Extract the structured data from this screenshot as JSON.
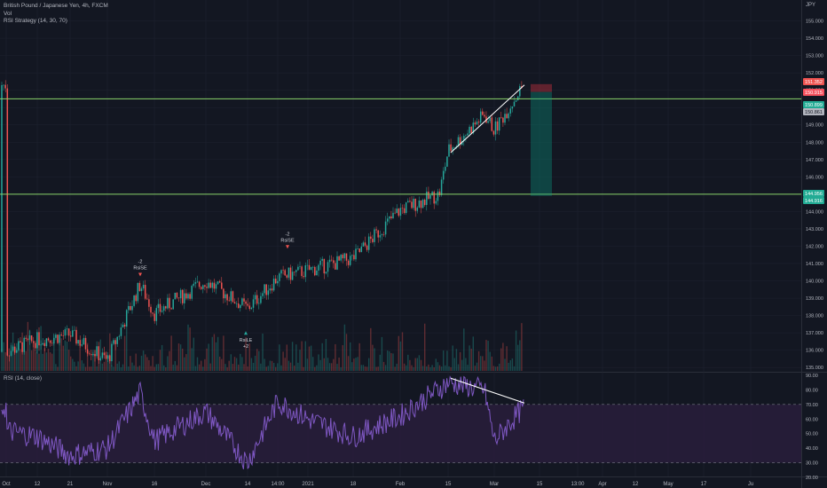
{
  "symbol_title": "British Pound / Japanese Yen, 4h, FXCM",
  "vol_label": "Vol",
  "strategy_label": "RSI Strategy (14, 30, 70)",
  "rsi_label": "RSI (14, close)",
  "currency": "JPY",
  "chart_data": [
    {
      "type": "candlestick",
      "title": "British Pound / Japanese Yen, 4h, FXCM",
      "ylim": [
        134.6,
        156.0
      ],
      "y_ticks": [
        "155.000",
        "154.000",
        "153.000",
        "152.000",
        "151.000",
        "150.000",
        "149.000",
        "148.000",
        "147.000",
        "146.000",
        "145.000",
        "144.000",
        "143.000",
        "142.000",
        "141.000",
        "140.000",
        "139.000",
        "138.000",
        "137.000",
        "136.000",
        "135.000"
      ],
      "x_ticks": [
        "Oct",
        "12",
        "21",
        "Nov",
        "16",
        "Dec",
        "14",
        "14:00",
        "2021",
        "18",
        "Feb",
        "15",
        "Mar",
        "15",
        "13:00",
        "Apr",
        "12",
        "May",
        "17",
        "Ju"
      ],
      "price_anchors": [
        {
          "t": "Oct",
          "p": 135.9
        },
        {
          "t": "12",
          "p": 136.6
        },
        {
          "t": "21",
          "p": 136.9
        },
        {
          "t": "Nov",
          "p": 135.4
        },
        {
          "t": "Nov+6d",
          "p": 139.8
        },
        {
          "t": "16",
          "p": 138.1
        },
        {
          "t": "Dec",
          "p": 140.0
        },
        {
          "t": "14",
          "p": 138.4
        },
        {
          "t": "14:00",
          "p": 140.2
        },
        {
          "t": "2021",
          "p": 140.6
        },
        {
          "t": "18",
          "p": 141.3
        },
        {
          "t": "Feb",
          "p": 144.1
        },
        {
          "t": "Feb+10d",
          "p": 145.0
        },
        {
          "t": "15",
          "p": 147.5
        },
        {
          "t": "Feb+24d",
          "p": 149.6
        },
        {
          "t": "Mar",
          "p": 148.7
        },
        {
          "t": "Mar+7d",
          "p": 151.3
        }
      ],
      "horizontal_lines": [
        150.5,
        145.0
      ],
      "trend_line": {
        "from_price": 147.4,
        "to_price": 151.3
      },
      "position_box": {
        "stop_top": 151.35,
        "entry": 150.9,
        "target": 144.9
      },
      "price_labels": [
        "151.352",
        "150.915",
        "150.899",
        "150.861",
        "144.956",
        "144.916"
      ],
      "signals": [
        {
          "text": "-2",
          "sub": "RsiSE",
          "price": 140.0
        },
        {
          "text": "-2",
          "sub": "RsiSE",
          "price": 141.6
        },
        {
          "text": "RsiLE",
          "sub": "+2",
          "price": 137.2
        }
      ]
    },
    {
      "type": "line",
      "title": "RSI (14, close)",
      "ylim": [
        20,
        90
      ],
      "y_ticks": [
        "90.00",
        "80.00",
        "70.00",
        "60.00",
        "50.00",
        "40.00",
        "30.00",
        "20.00"
      ],
      "upper_band": 70,
      "lower_band": 30,
      "rsi_anchors": [
        {
          "t": "Oct",
          "v": 52
        },
        {
          "t": "12",
          "v": 48
        },
        {
          "t": "21",
          "v": 35
        },
        {
          "t": "Nov",
          "v": 40
        },
        {
          "t": "Nov+6d",
          "v": 78
        },
        {
          "t": "16",
          "v": 45
        },
        {
          "t": "Dec",
          "v": 65
        },
        {
          "t": "14",
          "v": 30
        },
        {
          "t": "14:00",
          "v": 72
        },
        {
          "t": "2021",
          "v": 60
        },
        {
          "t": "18",
          "v": 48
        },
        {
          "t": "Feb",
          "v": 62
        },
        {
          "t": "15",
          "v": 85
        },
        {
          "t": "Feb+24d",
          "v": 80
        },
        {
          "t": "Mar",
          "v": 45
        },
        {
          "t": "Mar+7d",
          "v": 68
        }
      ]
    }
  ],
  "colors": {
    "bg": "#131722",
    "up": "#26a69a",
    "down": "#ef5350",
    "grid": "#1f2330",
    "level": "#89d36a",
    "rsi": "#7e57c2",
    "rsi_band": "#2a1e3d",
    "label_red": "#ef5350",
    "label_green": "#22ab94",
    "label_grey": "#b2b5be"
  }
}
